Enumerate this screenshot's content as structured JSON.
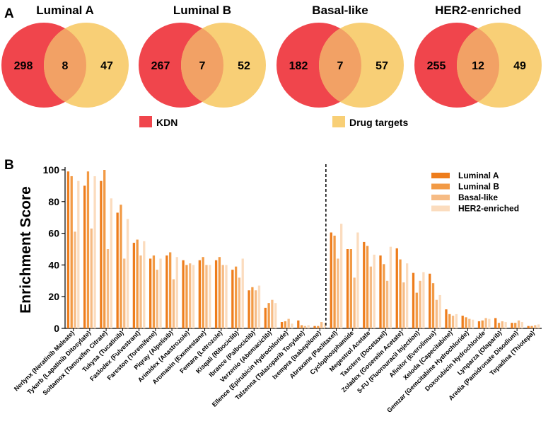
{
  "panel_labels": {
    "a": "A",
    "b": "B"
  },
  "venn": {
    "legend": {
      "kdn": "KDN",
      "drug_targets": "Drug targets"
    },
    "colors": {
      "kdn": "#f0454c",
      "drug_targets": "#f8cf76",
      "overlap": "#f2a165"
    },
    "diagrams": [
      {
        "title": "Luminal A",
        "left": "298",
        "overlap": "8",
        "right": "47"
      },
      {
        "title": "Luminal B",
        "left": "267",
        "overlap": "7",
        "right": "52"
      },
      {
        "title": "Basal-like",
        "left": "182",
        "overlap": "7",
        "right": "57"
      },
      {
        "title": "HER2-enriched",
        "left": "255",
        "overlap": "12",
        "right": "49"
      }
    ]
  },
  "chart_data": {
    "type": "bar",
    "ylabel": "Enrichment Score",
    "xlabel": "",
    "ylim": [
      0,
      100
    ],
    "yticks": [
      "0",
      "20",
      "40",
      "60",
      "80",
      "100"
    ],
    "legend_position": "top-right",
    "divider_after_category": "Ixempra (Ixabepilone)",
    "categories": [
      "Nerlynx (Neratinib Maleate)",
      "Tykerb (Lapatinib Ditosylate)",
      "Soltamox (Tamoxifen Citrate)",
      "Tukysa (Tucatinib)",
      "Faslodex (Fulvestrant)",
      "Fareston (Toremifene)",
      "Piqray (Alpelisib)",
      "Arimidex (Anastrozole)",
      "Aromasin (Exemestane)",
      "Femara (Letrozole)",
      "Kisqali (Ribociclib)",
      "Ibrance (Palbociclib)",
      "Verzenio (Abemaciclib)",
      "Ellence (Epirubicin Hydrochloride)",
      "Talzenna (Talazoparib Tosylate)",
      "Ixempra (Ixabepilone)",
      "Abraxane (Paclitaxel)",
      "Cyclophosphamide",
      "Megestrol Acetate",
      "Taxotere (Docetaxel)",
      "Zoladex (Goserelin Acetate)",
      "5-FU (Fluorouracil Injection)",
      "Afinitor (Everolimus)",
      "Xeloda (Capecitabine)",
      "Gemzar (Gemcitabine Hydrochloride)",
      "Doxorubicin Hydrochloride",
      "Lynparza (Olaparib)",
      "Aredia (Pamidronate Disodium)",
      "Tepadina (Thiotepa)"
    ],
    "series": [
      {
        "name": "Luminal A",
        "color": "#ee7d1c",
        "values": [
          99,
          90,
          93,
          73,
          54,
          44,
          46,
          43,
          43,
          43,
          37,
          24,
          13,
          4,
          5,
          1.5,
          60.5,
          50,
          54.5,
          46,
          50.5,
          35,
          34.5,
          12,
          8,
          4.5,
          6.5,
          3.5,
          1.5
        ]
      },
      {
        "name": "Luminal B",
        "color": "#f29a45",
        "values": [
          96,
          99,
          100,
          78,
          56,
          46,
          48,
          40,
          45,
          45,
          39,
          26,
          16,
          4.5,
          2,
          1.5,
          58.5,
          50,
          52,
          40.5,
          43.5,
          22.5,
          28.5,
          9,
          7,
          5,
          3.5,
          3.5,
          1.5
        ]
      },
      {
        "name": "Basal-like",
        "color": "#f6bb84",
        "values": [
          61,
          63,
          50,
          44,
          46,
          37,
          31,
          41,
          40,
          40,
          32,
          24,
          18,
          6,
          1.5,
          4,
          44,
          32,
          39,
          30,
          29,
          30,
          18,
          8,
          6,
          6.5,
          4.5,
          5,
          2
        ]
      },
      {
        "name": "HER2-enriched",
        "color": "#fbdcbe",
        "values": [
          93,
          96,
          82,
          69,
          55,
          44,
          45,
          40,
          40,
          40,
          44,
          27,
          16,
          3,
          2,
          3.5,
          66,
          60.5,
          46.5,
          51.5,
          41,
          35.5,
          21,
          9,
          5.5,
          6,
          4,
          4,
          2.5
        ]
      }
    ]
  }
}
